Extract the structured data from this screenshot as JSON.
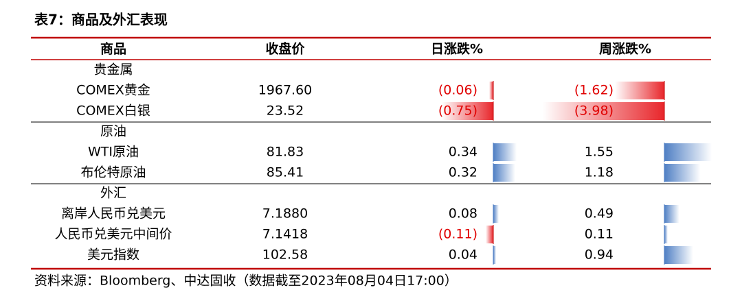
{
  "title": "表7：商品及外汇表现",
  "table": {
    "header": [
      "商品",
      "收盘价",
      "日涨跌%",
      "周涨跌%"
    ],
    "groups": [
      {
        "name": "贵金属",
        "rows": [
          {
            "name": "COMEX黄金",
            "close": "1967.60",
            "day": {
              "value": -0.06,
              "label": "(0.06)"
            },
            "week": {
              "value": -1.62,
              "label": "(1.62)"
            }
          },
          {
            "name": "COMEX白银",
            "close": "23.52",
            "day": {
              "value": -0.75,
              "label": "(0.75)"
            },
            "week": {
              "value": -3.98,
              "label": "(3.98)"
            }
          }
        ]
      },
      {
        "name": "原油",
        "rows": [
          {
            "name": "WTI原油",
            "close": "81.83",
            "day": 0.34,
            "week": 1.55
          },
          {
            "name": "布伦特原油",
            "close": "85.41",
            "day": 0.32,
            "week": 1.18
          }
        ]
      },
      {
        "name": "外汇",
        "rows": [
          {
            "name": "离岸人民币兑美元",
            "close": "7.1880",
            "day": 0.08,
            "week": 0.49
          },
          {
            "name": "人民币兑美元中间价",
            "close": "7.1418",
            "day": {
              "value": -0.11,
              "label": "(0.11)"
            },
            "week": 0.11
          },
          {
            "name": "美元指数",
            "close": "102.58",
            "day": 0.04,
            "week": 0.94
          }
        ]
      }
    ]
  },
  "source": "资料来源：Bloomberg、中达固收（数据截至2023年08月04日17:00）"
}
